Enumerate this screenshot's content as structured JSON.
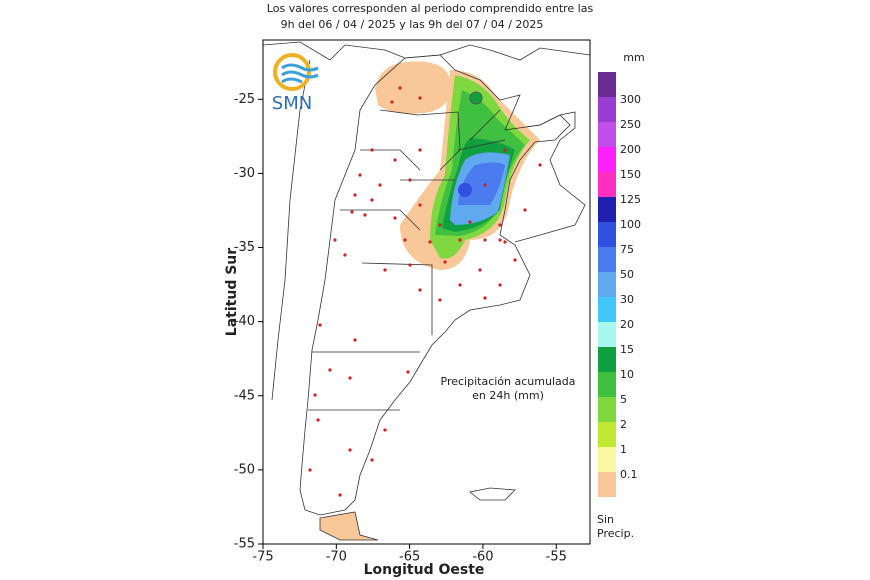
{
  "header": {
    "lines": [
      "Los valores corresponden al periodo comprendido entre las",
      "9h del 06 / 04 / 2025  y las 9h del 07 / 04 / 2025"
    ]
  },
  "logo": "SMN",
  "axes": {
    "x_label": "Longitud Oeste",
    "y_label": "Latitud Sur",
    "xlim": [
      -75,
      -52.7
    ],
    "ylim": [
      -55,
      -21
    ],
    "xticks": [
      -75,
      -70,
      -65,
      -60,
      -55
    ],
    "yticks": [
      -25,
      -30,
      -35,
      -40,
      -45,
      -50,
      -55
    ]
  },
  "legend": {
    "unit": "mm",
    "labels": [
      "300",
      "250",
      "200",
      "150",
      "125",
      "100",
      "75",
      "50",
      "30",
      "20",
      "15",
      "10",
      "5",
      "2",
      "1",
      "0.1"
    ],
    "colors": [
      "#6a2c91",
      "#9a3bd1",
      "#c04ee8",
      "#ff20ff",
      "#ff30c0",
      "#2020b0",
      "#3050e0",
      "#4a7cf0",
      "#60a8f0",
      "#40c8f8",
      "#a8f8f0",
      "#10a040",
      "#40c040",
      "#80d840",
      "#c0e830",
      "#f8f8a0",
      "#f8c898"
    ],
    "no_precip": [
      "Sin",
      "Precip."
    ]
  },
  "annotation": [
    "Precipitación acumulada",
    "en 24h (mm)"
  ]
}
